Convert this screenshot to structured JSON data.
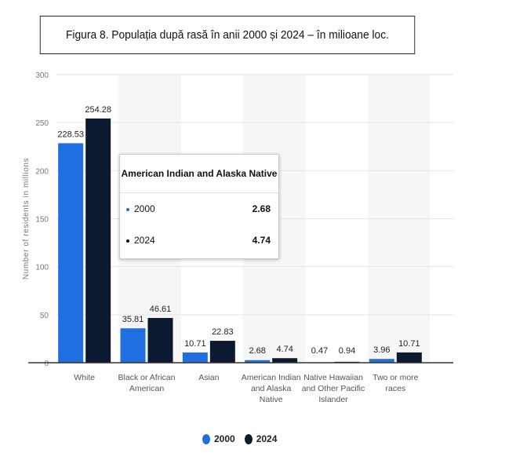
{
  "page_title": "Figura 8. Populația după rasă în anii 2000 și 2024 – în milioane loc.",
  "chart_data": {
    "type": "bar",
    "title": "Figura 8. Populația după rasă în anii 2000 și 2024 – în milioane loc.",
    "xlabel": "",
    "ylabel": "Number of residents in millions",
    "ylim": [
      0,
      300
    ],
    "yticks": [
      0,
      50,
      100,
      150,
      200,
      250,
      300
    ],
    "grid": true,
    "legend_position": "bottom-center",
    "categories": [
      [
        "White"
      ],
      [
        "Black or African",
        "American"
      ],
      [
        "Asian"
      ],
      [
        "American Indian",
        "and Alaska",
        "Native"
      ],
      [
        "Native Hawaiian",
        "and Other Pacific",
        "Islander"
      ],
      [
        "Two or more",
        "races"
      ]
    ],
    "series": [
      {
        "name": "2000",
        "color": "#1f6fe0",
        "values": [
          228.53,
          35.81,
          10.71,
          2.68,
          0.47,
          3.96
        ]
      },
      {
        "name": "2024",
        "color": "#0b1a30",
        "values": [
          254.28,
          46.61,
          22.83,
          4.74,
          0.94,
          10.71
        ]
      }
    ]
  },
  "tooltip": {
    "title": "American Indian and Alaska Native",
    "rows": [
      {
        "label": "2000",
        "value": "2.68",
        "color": "#1f6fe0"
      },
      {
        "label": "2024",
        "value": "4.74",
        "color": "#111111"
      }
    ]
  }
}
